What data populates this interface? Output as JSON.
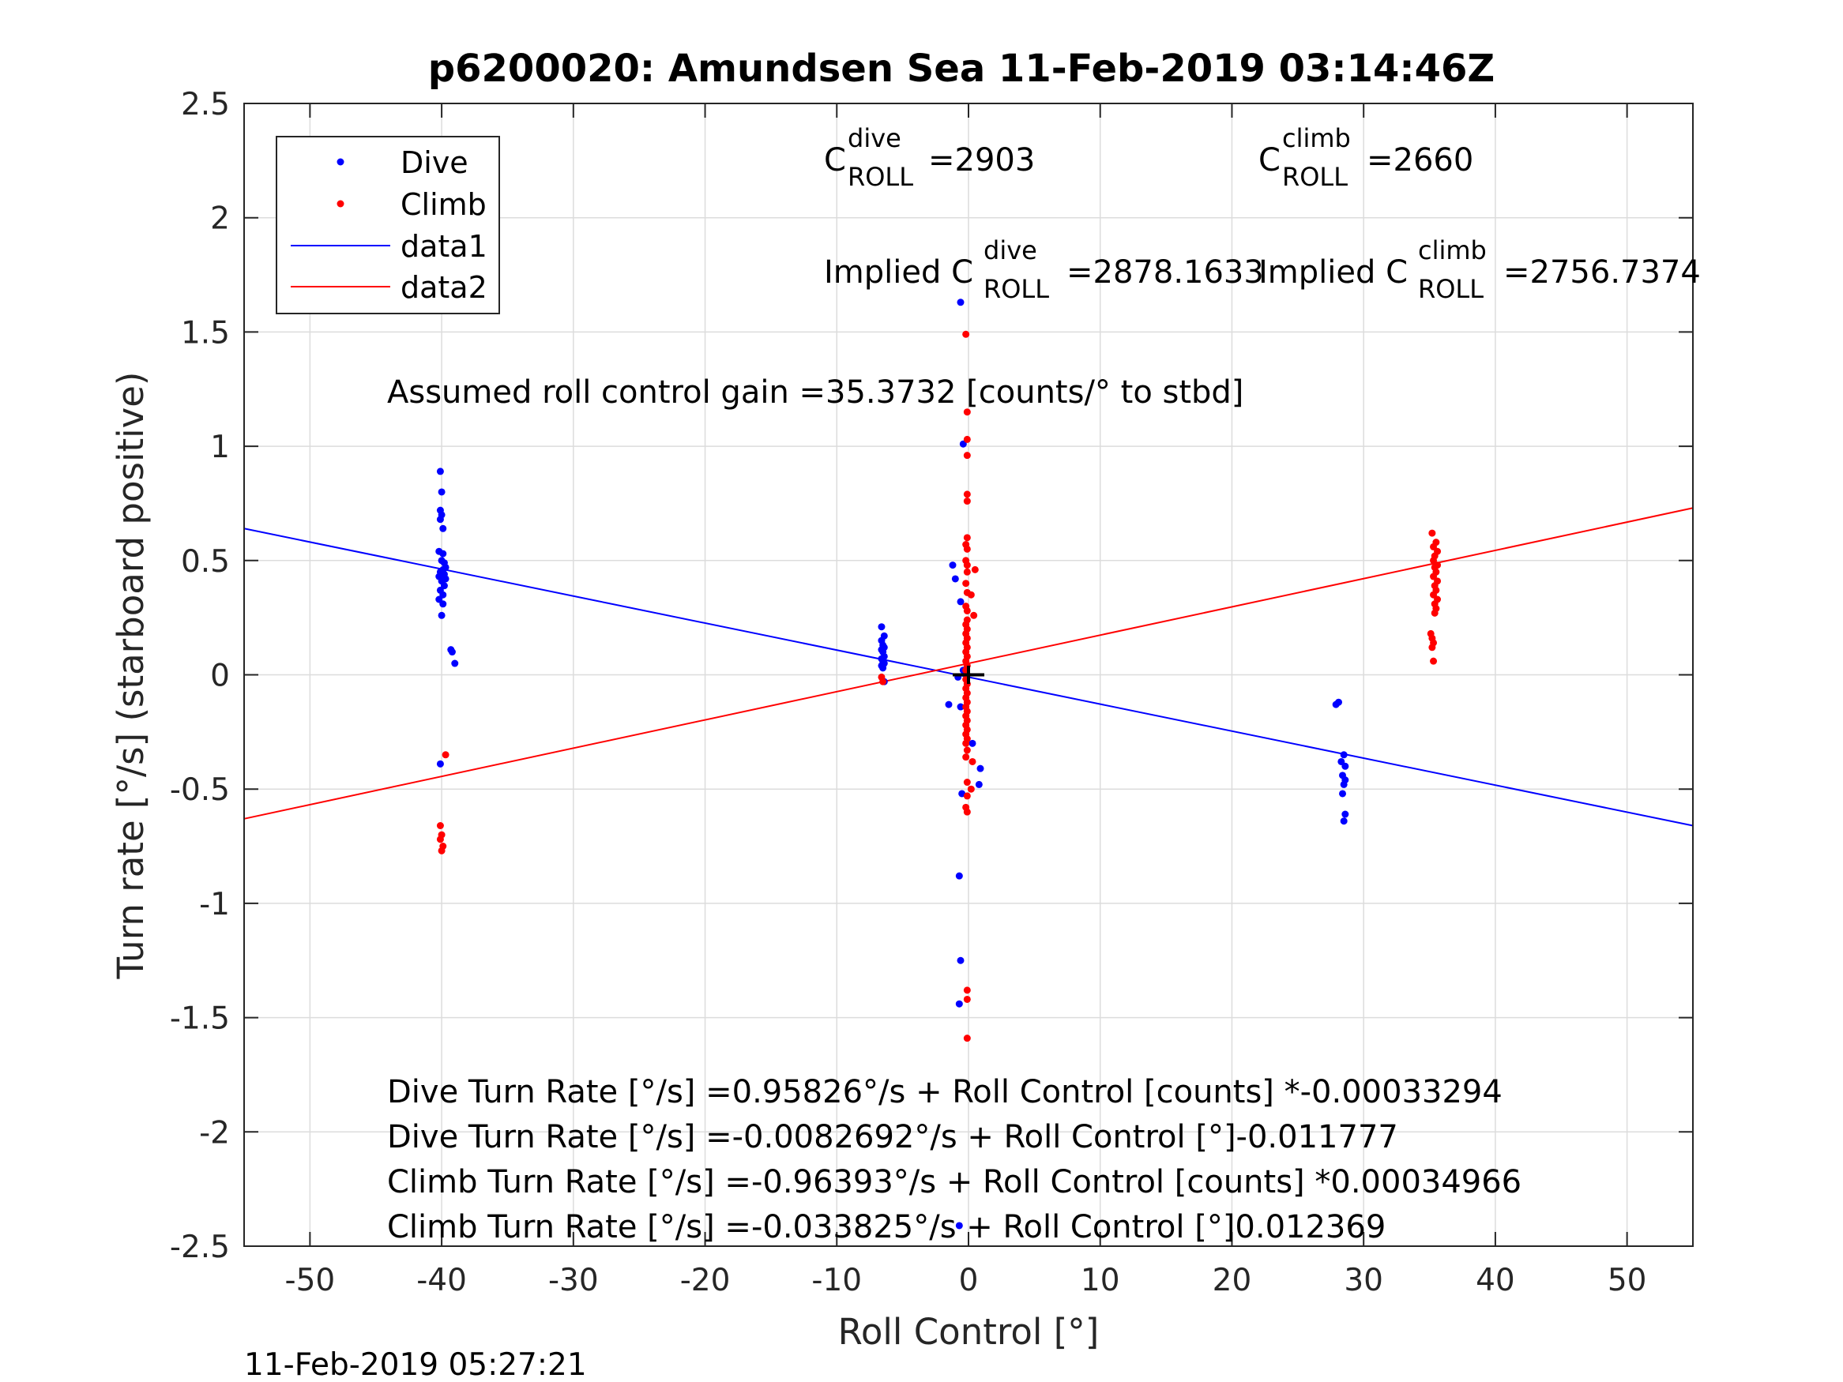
{
  "chart_data": {
    "type": "scatter",
    "title": "p6200020: Amundsen Sea 11-Feb-2019 03:14:46Z",
    "xlabel": "Roll Control [°]",
    "ylabel": "Turn rate [°/s] (starboard positive)",
    "xlim": [
      -55,
      55
    ],
    "ylim": [
      -2.5,
      2.5
    ],
    "xticks": [
      "-50",
      "-40",
      "-30",
      "-20",
      "-10",
      "0",
      "10",
      "20",
      "30",
      "40",
      "50"
    ],
    "yticks": [
      "-2.5",
      "-2",
      "-1.5",
      "-1",
      "-0.5",
      "0",
      "0.5",
      "1",
      "1.5",
      "2",
      "2.5"
    ],
    "grid": true,
    "legend_position": "top-left",
    "series": [
      {
        "name": "Dive",
        "kind": "points",
        "color": "#0000ff",
        "points": [
          [
            -40.1,
            0.89
          ],
          [
            -40.0,
            0.8
          ],
          [
            -40.1,
            0.72
          ],
          [
            -40.0,
            0.7
          ],
          [
            -40.1,
            0.68
          ],
          [
            -39.9,
            0.64
          ],
          [
            -40.2,
            0.54
          ],
          [
            -39.9,
            0.53
          ],
          [
            -40.0,
            0.5
          ],
          [
            -39.8,
            0.49
          ],
          [
            -39.7,
            0.47
          ],
          [
            -39.9,
            0.46
          ],
          [
            -40.1,
            0.45
          ],
          [
            -39.8,
            0.44
          ],
          [
            -40.2,
            0.43
          ],
          [
            -39.7,
            0.42
          ],
          [
            -40.0,
            0.41
          ],
          [
            -39.8,
            0.39
          ],
          [
            -40.1,
            0.37
          ],
          [
            -39.9,
            0.35
          ],
          [
            -40.2,
            0.33
          ],
          [
            -39.9,
            0.31
          ],
          [
            -40.0,
            0.26
          ],
          [
            -39.3,
            0.11
          ],
          [
            -39.2,
            0.1
          ],
          [
            -39.0,
            0.05
          ],
          [
            -40.1,
            -0.39
          ],
          [
            -6.6,
            0.21
          ],
          [
            -6.4,
            0.17
          ],
          [
            -6.6,
            0.15
          ],
          [
            -6.5,
            0.13
          ],
          [
            -6.4,
            0.12
          ],
          [
            -6.6,
            0.11
          ],
          [
            -6.5,
            0.1
          ],
          [
            -6.4,
            0.08
          ],
          [
            -6.6,
            0.07
          ],
          [
            -6.5,
            0.06
          ],
          [
            -6.4,
            0.05
          ],
          [
            -6.6,
            0.04
          ],
          [
            -6.5,
            0.03
          ],
          [
            -6.4,
            -0.03
          ],
          [
            -0.6,
            1.63
          ],
          [
            -0.4,
            1.01
          ],
          [
            -1.2,
            0.48
          ],
          [
            -1.0,
            0.42
          ],
          [
            -0.6,
            0.32
          ],
          [
            -0.4,
            0.02
          ],
          [
            -0.8,
            -0.01
          ],
          [
            -1.5,
            -0.13
          ],
          [
            -0.6,
            -0.14
          ],
          [
            0.3,
            -0.3
          ],
          [
            0.9,
            -0.41
          ],
          [
            0.8,
            -0.48
          ],
          [
            -0.5,
            -0.52
          ],
          [
            -0.7,
            -0.88
          ],
          [
            -0.6,
            -1.25
          ],
          [
            -0.7,
            -1.44
          ],
          [
            -0.7,
            -2.41
          ],
          [
            28.1,
            -0.12
          ],
          [
            27.9,
            -0.13
          ],
          [
            28.5,
            -0.35
          ],
          [
            28.3,
            -0.38
          ],
          [
            28.6,
            -0.4
          ],
          [
            28.4,
            -0.44
          ],
          [
            28.6,
            -0.46
          ],
          [
            28.5,
            -0.48
          ],
          [
            28.4,
            -0.52
          ],
          [
            28.6,
            -0.61
          ],
          [
            28.5,
            -0.64
          ]
        ]
      },
      {
        "name": "Climb",
        "kind": "points",
        "color": "#ff0000",
        "points": [
          [
            -39.7,
            -0.35
          ],
          [
            -40.1,
            -0.66
          ],
          [
            -40.0,
            -0.7
          ],
          [
            -40.1,
            -0.72
          ],
          [
            -39.9,
            -0.75
          ],
          [
            -40.0,
            -0.77
          ],
          [
            -6.6,
            -0.01
          ],
          [
            -6.5,
            -0.03
          ],
          [
            -0.2,
            1.49
          ],
          [
            -0.1,
            1.15
          ],
          [
            -0.1,
            1.03
          ],
          [
            -0.1,
            0.96
          ],
          [
            -0.1,
            0.79
          ],
          [
            -0.1,
            0.76
          ],
          [
            -0.1,
            0.6
          ],
          [
            -0.2,
            0.57
          ],
          [
            -0.1,
            0.55
          ],
          [
            -0.2,
            0.5
          ],
          [
            -0.1,
            0.48
          ],
          [
            0.5,
            0.46
          ],
          [
            -0.1,
            0.45
          ],
          [
            -0.2,
            0.4
          ],
          [
            -0.1,
            0.36
          ],
          [
            0.2,
            0.35
          ],
          [
            -0.2,
            0.3
          ],
          [
            -0.1,
            0.28
          ],
          [
            0.4,
            0.26
          ],
          [
            -0.1,
            0.24
          ],
          [
            -0.2,
            0.22
          ],
          [
            -0.1,
            0.2
          ],
          [
            -0.2,
            0.18
          ],
          [
            -0.1,
            0.16
          ],
          [
            -0.2,
            0.14
          ],
          [
            -0.1,
            0.12
          ],
          [
            -0.2,
            0.1
          ],
          [
            -0.1,
            0.08
          ],
          [
            -0.2,
            0.06
          ],
          [
            -0.1,
            0.04
          ],
          [
            -0.2,
            0.02
          ],
          [
            -0.1,
            0.0
          ],
          [
            -0.2,
            -0.02
          ],
          [
            -0.1,
            -0.04
          ],
          [
            -0.2,
            -0.06
          ],
          [
            -0.1,
            -0.08
          ],
          [
            -0.2,
            -0.1
          ],
          [
            -0.1,
            -0.12
          ],
          [
            -0.2,
            -0.14
          ],
          [
            -0.1,
            -0.16
          ],
          [
            -0.2,
            -0.18
          ],
          [
            -0.1,
            -0.2
          ],
          [
            -0.2,
            -0.22
          ],
          [
            -0.1,
            -0.24
          ],
          [
            -0.2,
            -0.26
          ],
          [
            -0.1,
            -0.28
          ],
          [
            -0.2,
            -0.3
          ],
          [
            -0.1,
            -0.33
          ],
          [
            -0.2,
            -0.36
          ],
          [
            0.3,
            -0.38
          ],
          [
            -0.1,
            -0.47
          ],
          [
            0.2,
            -0.5
          ],
          [
            -0.1,
            -0.53
          ],
          [
            -0.2,
            -0.58
          ],
          [
            -0.1,
            -0.6
          ],
          [
            -0.1,
            -1.38
          ],
          [
            -0.1,
            -1.42
          ],
          [
            -0.1,
            -1.59
          ],
          [
            35.2,
            0.62
          ],
          [
            35.5,
            0.58
          ],
          [
            35.3,
            0.56
          ],
          [
            35.6,
            0.54
          ],
          [
            35.4,
            0.52
          ],
          [
            35.3,
            0.5
          ],
          [
            35.6,
            0.48
          ],
          [
            35.4,
            0.47
          ],
          [
            35.5,
            0.45
          ],
          [
            35.3,
            0.43
          ],
          [
            35.6,
            0.41
          ],
          [
            35.4,
            0.39
          ],
          [
            35.5,
            0.37
          ],
          [
            35.3,
            0.35
          ],
          [
            35.6,
            0.33
          ],
          [
            35.4,
            0.31
          ],
          [
            35.5,
            0.29
          ],
          [
            35.4,
            0.27
          ],
          [
            35.1,
            0.18
          ],
          [
            35.2,
            0.16
          ],
          [
            35.3,
            0.14
          ],
          [
            35.2,
            0.12
          ],
          [
            35.3,
            0.06
          ]
        ]
      },
      {
        "name": "data1",
        "kind": "line",
        "color": "#0000ff",
        "points": [
          [
            -55,
            0.64
          ],
          [
            55,
            -0.66
          ]
        ]
      },
      {
        "name": "data2",
        "kind": "line",
        "color": "#ff0000",
        "points": [
          [
            -55,
            -0.63
          ],
          [
            55,
            0.73
          ]
        ]
      }
    ],
    "origin_marker": {
      "x": 0,
      "y": 0,
      "xspan": 1.2,
      "yspan": 0.04
    },
    "annotations": {
      "c_dive": {
        "base": "C",
        "sup": "dive",
        "sub": "ROLL",
        "value": "=2903"
      },
      "c_climb": {
        "base": "C",
        "sup": "climb",
        "sub": "ROLL",
        "value": "=2660"
      },
      "implied_dive": {
        "base": "Implied C",
        "sup": "dive",
        "sub": "ROLL",
        "value": "=2878.1633"
      },
      "implied_climb": {
        "base": "Implied C",
        "sup": "climb",
        "sub": "ROLL",
        "value": "=2756.7374"
      },
      "gain": "Assumed roll control gain =35.3732 [counts/° to stbd]",
      "fit_lines": [
        "Dive Turn Rate [°/s] =0.95826°/s + Roll Control [counts] *-0.00033294",
        "Dive Turn Rate [°/s] =-0.0082692°/s + Roll Control [°]-0.011777",
        "Climb Turn Rate [°/s] =-0.96393°/s + Roll Control [counts] *0.00034966",
        "Climb Turn Rate [°/s] =-0.033825°/s + Roll Control [°]0.012369"
      ]
    },
    "timestamp": "11-Feb-2019 05:27:21"
  }
}
